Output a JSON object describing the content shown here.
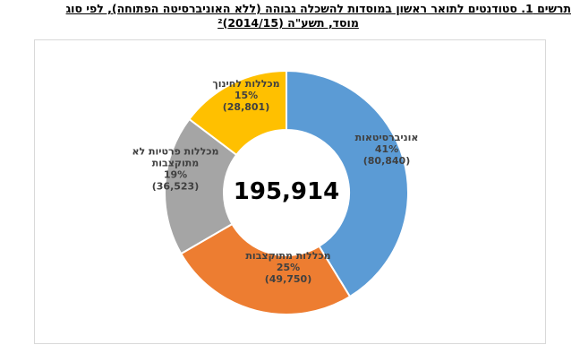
{
  "figure": {
    "title_line1": "תרשים 1. סטודנטים לתואר ראשון במוסדות להשכלה גבוהה (ללא האוניברסיטה הפתוחה), לפי סוג",
    "title_line2": "מוסד, תשע\"ה (2014/15)²"
  },
  "chart_data": {
    "type": "pie",
    "donut": true,
    "center_label": "195,914",
    "slices": [
      {
        "name": "אוניברסיטאות",
        "percent": "41%",
        "value": 80840,
        "value_label": "(80,840)",
        "color": "#5b9bd5"
      },
      {
        "name": "מכללות מתוקצבות",
        "percent": "25%",
        "value": 49750,
        "value_label": "(49,750)",
        "color": "#ed7d31"
      },
      {
        "name": "מכללות פרטיות לא מתוקצבות",
        "percent": "19%",
        "value": 36523,
        "value_label": "(36,523)",
        "color": "#a5a5a5"
      },
      {
        "name": "מכללות לחינוך",
        "percent": "15%",
        "value": 28801,
        "value_label": "(28,801)",
        "color": "#ffc000"
      }
    ],
    "start_angle_deg": 0,
    "direction": "clockwise",
    "legend": "none"
  }
}
